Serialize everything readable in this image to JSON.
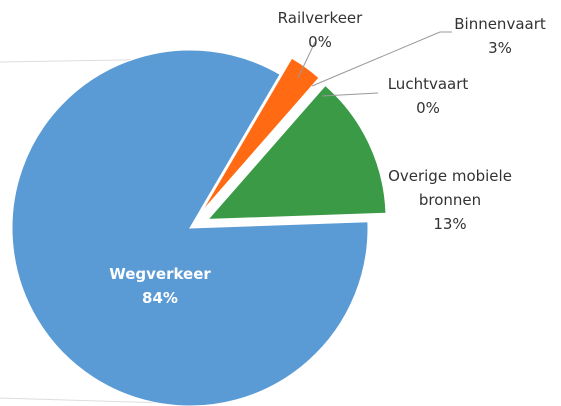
{
  "chart_data": {
    "type": "pie",
    "categories": [
      "Wegverkeer",
      "Railverkeer",
      "Binnenvaart",
      "Luchtvaart",
      "Overige mobiele bronnen"
    ],
    "values": [
      84,
      0,
      3,
      0,
      13
    ],
    "value_labels": [
      "84%",
      "0%",
      "3%",
      "0%",
      "13%"
    ],
    "colors": [
      "#5b9bd5",
      "#ff6a13",
      "#ff6a13",
      "#3b9a46",
      "#3b9a46"
    ]
  }
}
